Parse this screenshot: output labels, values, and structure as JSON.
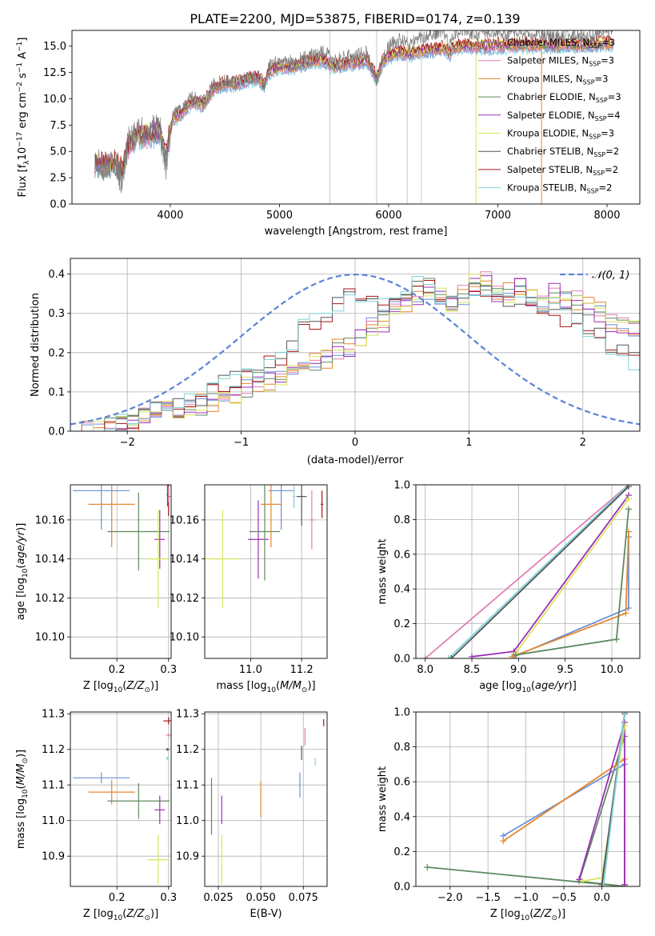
{
  "figure_title": "PLATE=2200, MJD=53875, FIBERID=0174, z=0.139",
  "colors": {
    "chabrier_miles": "#6a8fd8",
    "salpeter_miles": "#e27fb3",
    "kroupa_miles": "#e7862c",
    "chabrier_elodie": "#5e8a5e",
    "salpeter_elodie": "#9b2fb8",
    "kroupa_elodie": "#d8e55a",
    "chabrier_stelib": "#555555",
    "salpeter_stelib": "#a81515",
    "kroupa_stelib": "#7fd3d8",
    "data": "#7f7f7f",
    "normal": "#5b84d6",
    "grid": "#b0b0b0"
  },
  "chart_data": [
    {
      "id": "spectrum",
      "type": "line",
      "title": "PLATE=2200, MJD=53875, FIBERID=0174, z=0.139",
      "xlabel": "wavelength [Angstrom, rest frame]",
      "ylabel": "Flux [f_λ 10^-17 erg cm^-2 s^-1 A^-1]",
      "xlim": [
        3100,
        8300
      ],
      "ylim": [
        0,
        16.5
      ],
      "xticks": [
        4000,
        5000,
        6000,
        7000,
        8000
      ],
      "yticks": [
        0.0,
        2.5,
        5.0,
        7.5,
        10.0,
        12.5,
        15.0
      ],
      "grid": false,
      "legend_position": "top-right",
      "legend": [
        {
          "name": "Chabrier MILES, N_SSP=3",
          "base": "Chabrier MILES, N",
          "sub": "SSP",
          "tail": "=3",
          "color_key": "chabrier_miles"
        },
        {
          "name": "Salpeter MILES, N_SSP=3",
          "base": "Salpeter MILES, N",
          "sub": "SSP",
          "tail": "=3",
          "color_key": "salpeter_miles"
        },
        {
          "name": "Kroupa MILES, N_SSP=3",
          "base": "Kroupa MILES, N",
          "sub": "SSP",
          "tail": "=3",
          "color_key": "kroupa_miles"
        },
        {
          "name": "Chabrier ELODIE, N_SSP=3",
          "base": "Chabrier ELODIE, N",
          "sub": "SSP",
          "tail": "=3",
          "color_key": "chabrier_elodie"
        },
        {
          "name": "Salpeter ELODIE, N_SSP=4",
          "base": "Salpeter ELODIE, N",
          "sub": "SSP",
          "tail": "=4",
          "color_key": "salpeter_elodie"
        },
        {
          "name": "Kroupa ELODIE, N_SSP=3",
          "base": "Kroupa ELODIE, N",
          "sub": "SSP",
          "tail": "=3",
          "color_key": "kroupa_elodie"
        },
        {
          "name": "Chabrier STELIB, N_SSP=2",
          "base": "Chabrier STELIB, N",
          "sub": "SSP",
          "tail": "=2",
          "color_key": "chabrier_stelib"
        },
        {
          "name": "Salpeter STELIB, N_SSP=2",
          "base": "Salpeter STELIB, N",
          "sub": "SSP",
          "tail": "=2",
          "color_key": "salpeter_stelib"
        },
        {
          "name": "Kroupa STELIB, N_SSP=2",
          "base": "Kroupa STELIB, N",
          "sub": "SSP",
          "tail": "=2",
          "color_key": "kroupa_stelib"
        }
      ],
      "data_curve": {
        "x": [
          3310,
          3400,
          3500,
          3560,
          3620,
          3700,
          3800,
          3900,
          3960,
          4020,
          4100,
          4200,
          4300,
          4400,
          4500,
          4600,
          4700,
          4800,
          4860,
          4900,
          5000,
          5100,
          5200,
          5300,
          5400,
          5500,
          5600,
          5700,
          5800,
          5890,
          5950,
          6000,
          6100,
          6200,
          6300,
          6400,
          6500,
          6560,
          6600,
          6700,
          6800,
          6900,
          7000,
          7100,
          7200,
          7300,
          7400,
          7500,
          7600,
          7700,
          7800,
          7900,
          8000,
          8060
        ],
        "y": [
          3.9,
          3.7,
          3.9,
          2.0,
          6.0,
          7.0,
          6.8,
          7.2,
          3.8,
          8.5,
          9.0,
          10.2,
          9.8,
          11.3,
          11.8,
          11.6,
          12.0,
          12.3,
          11.0,
          13.0,
          13.6,
          13.5,
          13.8,
          14.2,
          14.5,
          13.7,
          13.9,
          14.1,
          14.4,
          11.5,
          14.0,
          15.0,
          15.6,
          15.2,
          15.8,
          16.2,
          16.5,
          15.0,
          16.3,
          16.5,
          16.2,
          16.4,
          16.3,
          16.1,
          16.4,
          16.0,
          16.2,
          15.9,
          16.0,
          16.2,
          15.8,
          16.1,
          16.4,
          16.5
        ]
      },
      "model_curve": {
        "x": [
          3310,
          3400,
          3500,
          3560,
          3620,
          3700,
          3800,
          3900,
          3960,
          4020,
          4100,
          4200,
          4300,
          4400,
          4500,
          4600,
          4700,
          4800,
          4860,
          4900,
          5000,
          5100,
          5200,
          5300,
          5400,
          5500,
          5600,
          5700,
          5800,
          5890,
          5950,
          6000,
          6100,
          6200,
          6300,
          6400,
          6500,
          6560,
          6600,
          6700,
          6800,
          6900,
          7000,
          7100,
          7200,
          7300,
          7400,
          7500,
          7600,
          7700,
          7800,
          7900,
          8000,
          8060
        ],
        "y": [
          3.8,
          3.6,
          3.8,
          3.0,
          5.5,
          6.5,
          6.4,
          6.9,
          4.5,
          8.0,
          8.6,
          9.7,
          9.4,
          10.9,
          11.4,
          11.4,
          11.7,
          12.0,
          11.2,
          12.5,
          13.0,
          13.0,
          13.2,
          13.5,
          13.6,
          13.0,
          13.2,
          13.4,
          13.6,
          12.0,
          13.5,
          14.0,
          14.4,
          14.2,
          14.5,
          14.6,
          14.8,
          14.3,
          14.8,
          15.0,
          14.9,
          14.9,
          15.0,
          15.0,
          15.1,
          15.0,
          15.1,
          15.0,
          15.1,
          15.1,
          15.0,
          15.1,
          15.2,
          15.2
        ]
      },
      "sky_lines_x": [
        5460,
        5890,
        6170,
        6300,
        6800,
        7400
      ]
    },
    {
      "id": "residuals",
      "type": "line",
      "xlabel": "(data-model)/error",
      "ylabel": "Normed distribution",
      "xlim": [
        -2.5,
        2.5
      ],
      "ylim": [
        0,
        0.44
      ],
      "xticks": [
        -2,
        -1,
        0,
        1,
        2
      ],
      "yticks": [
        0.0,
        0.1,
        0.2,
        0.3,
        0.4
      ],
      "grid": true,
      "legend_position": "top-right",
      "legend": [
        {
          "name": "N(0,1)",
          "label": "𝒩(0, 1)",
          "color_key": "normal"
        }
      ],
      "normal_mean": 0,
      "normal_sigma": 1,
      "hist_edges_start": -2.5,
      "hist_bin_width": 0.1,
      "hist_group_a": [
        0.0,
        0.0,
        0.005,
        0.01,
        0.02,
        0.03,
        0.04,
        0.05,
        0.06,
        0.07,
        0.08,
        0.09,
        0.1,
        0.12,
        0.13,
        0.14,
        0.15,
        0.17,
        0.19,
        0.22,
        0.26,
        0.28,
        0.3,
        0.33,
        0.36,
        0.35,
        0.33,
        0.32,
        0.34,
        0.36,
        0.38,
        0.36,
        0.35,
        0.33,
        0.34,
        0.36,
        0.35,
        0.33,
        0.32,
        0.34,
        0.33,
        0.31,
        0.3,
        0.29,
        0.28,
        0.26,
        0.24,
        0.22,
        0.2,
        0.18
      ],
      "hist_group_b": [
        0.0,
        0.0,
        0.0,
        0.005,
        0.01,
        0.02,
        0.03,
        0.04,
        0.05,
        0.05,
        0.06,
        0.07,
        0.08,
        0.09,
        0.1,
        0.11,
        0.12,
        0.13,
        0.14,
        0.15,
        0.16,
        0.17,
        0.19,
        0.21,
        0.22,
        0.24,
        0.26,
        0.28,
        0.3,
        0.33,
        0.35,
        0.36,
        0.34,
        0.33,
        0.35,
        0.37,
        0.38,
        0.36,
        0.35,
        0.36,
        0.34,
        0.33,
        0.35,
        0.34,
        0.33,
        0.32,
        0.3,
        0.28,
        0.27,
        0.26
      ]
    },
    {
      "id": "age_vs_Z",
      "type": "scatter",
      "xlabel": "Z [log10(Z/Z⊙)]",
      "ylabel": "age  [log10(age/yr)]",
      "xlim": [
        0.11,
        0.305
      ],
      "ylim": [
        10.089,
        10.178
      ],
      "xticks": [
        0.2,
        0.3
      ],
      "yticks": [
        10.1,
        10.12,
        10.14,
        10.16
      ],
      "grid": true,
      "points": [
        {
          "key": "chabrier_miles",
          "x": 0.17,
          "y": 10.175,
          "xerr": 0.055,
          "yerr": 0.02
        },
        {
          "key": "kroupa_miles",
          "x": 0.19,
          "y": 10.168,
          "xerr": 0.045,
          "yerr": 0.022
        },
        {
          "key": "chabrier_elodie",
          "x": 0.242,
          "y": 10.154,
          "xerr": 0.06,
          "yerr": 0.02
        },
        {
          "key": "salpeter_elodie",
          "x": 0.283,
          "y": 10.15,
          "xerr": 0.01,
          "yerr": 0.015
        },
        {
          "key": "kroupa_elodie",
          "x": 0.28,
          "y": 10.14,
          "xerr": 0.02,
          "yerr": 0.025
        },
        {
          "key": "salpeter_stelib",
          "x": 0.3,
          "y": 10.172,
          "xerr": 0.003,
          "yerr": 0.01
        },
        {
          "key": "chabrier_stelib",
          "x": 0.298,
          "y": 10.173,
          "xerr": 0.002,
          "yerr": 0.006
        },
        {
          "key": "salpeter_miles",
          "x": 0.3,
          "y": 10.173,
          "xerr": 0.001,
          "yerr": 0.004
        }
      ]
    },
    {
      "id": "age_vs_mass",
      "type": "scatter",
      "xlabel": "mass [log10(M/M⊙)]",
      "ylabel": "",
      "xlim": [
        10.82,
        11.3
      ],
      "ylim": [
        10.089,
        10.178
      ],
      "xticks": [
        11.0,
        11.2
      ],
      "yticks": [
        10.1,
        10.12,
        10.14,
        10.16
      ],
      "grid": true,
      "points": [
        {
          "key": "kroupa_elodie",
          "x": 10.89,
          "y": 10.14,
          "xerr": 0.07,
          "yerr": 0.025
        },
        {
          "key": "salpeter_elodie",
          "x": 11.03,
          "y": 10.15,
          "xerr": 0.04,
          "yerr": 0.02
        },
        {
          "key": "chabrier_elodie",
          "x": 11.055,
          "y": 10.154,
          "xerr": 0.06,
          "yerr": 0.025
        },
        {
          "key": "kroupa_miles",
          "x": 11.08,
          "y": 10.168,
          "xerr": 0.04,
          "yerr": 0.022
        },
        {
          "key": "chabrier_miles",
          "x": 11.12,
          "y": 10.175,
          "xerr": 0.05,
          "yerr": 0.02
        },
        {
          "key": "kroupa_stelib",
          "x": 11.17,
          "y": 10.172,
          "xerr": 0.005,
          "yerr": 0.006
        },
        {
          "key": "chabrier_stelib",
          "x": 11.2,
          "y": 10.172,
          "xerr": 0.02,
          "yerr": 0.015
        },
        {
          "key": "salpeter_miles",
          "x": 11.24,
          "y": 10.16,
          "xerr": 0.01,
          "yerr": 0.015
        },
        {
          "key": "salpeter_stelib",
          "x": 11.28,
          "y": 10.168,
          "xerr": 0.005,
          "yerr": 0.007
        }
      ]
    },
    {
      "id": "massweight_vs_age",
      "type": "line",
      "xlabel": "age  [log10(age/yr)]",
      "ylabel": "mass weight",
      "xlim": [
        7.9,
        10.3
      ],
      "ylim": [
        0,
        1.0
      ],
      "xticks": [
        8.0,
        8.5,
        9.0,
        9.5,
        10.0
      ],
      "yticks": [
        0.0,
        0.2,
        0.4,
        0.6,
        0.8,
        1.0
      ],
      "grid": true,
      "series": [
        {
          "key": "salpeter_miles",
          "x": [
            8.0,
            10.18
          ],
          "y": [
            0.0,
            1.0
          ]
        },
        {
          "key": "kroupa_stelib",
          "x": [
            8.25,
            10.18
          ],
          "y": [
            0.0,
            1.0
          ]
        },
        {
          "key": "chabrier_stelib",
          "x": [
            8.28,
            10.18
          ],
          "y": [
            0.0,
            0.99
          ]
        },
        {
          "key": "chabrier_miles",
          "x": [
            8.95,
            10.18,
            10.18
          ],
          "y": [
            0.01,
            0.29,
            0.7
          ]
        },
        {
          "key": "kroupa_miles",
          "x": [
            8.93,
            10.15,
            10.18
          ],
          "y": [
            0.01,
            0.26,
            0.73
          ]
        },
        {
          "key": "salpeter_elodie",
          "x": [
            8.5,
            8.95,
            10.18
          ],
          "y": [
            0.01,
            0.04,
            0.94
          ]
        },
        {
          "key": "kroupa_elodie",
          "x": [
            8.97,
            10.18
          ],
          "y": [
            0.03,
            0.92
          ]
        },
        {
          "key": "chabrier_elodie",
          "x": [
            8.97,
            10.05,
            10.18
          ],
          "y": [
            0.02,
            0.11,
            0.86
          ]
        }
      ]
    },
    {
      "id": "mass_vs_Z",
      "type": "scatter",
      "xlabel": "Z [log10(Z/Z⊙)]",
      "ylabel": "mass [log10(M/M⊙)]",
      "xlim": [
        0.11,
        0.305
      ],
      "ylim": [
        10.815,
        11.305
      ],
      "xticks": [
        0.2,
        0.3
      ],
      "yticks": [
        10.9,
        11.0,
        11.1,
        11.2,
        11.3
      ],
      "grid": true,
      "points": [
        {
          "key": "chabrier_miles",
          "x": 0.17,
          "y": 11.12,
          "xerr": 0.055,
          "yerr": 0.015
        },
        {
          "key": "kroupa_miles",
          "x": 0.19,
          "y": 11.08,
          "xerr": 0.045,
          "yerr": 0.035
        },
        {
          "key": "chabrier_elodie",
          "x": 0.242,
          "y": 11.055,
          "xerr": 0.06,
          "yerr": 0.05
        },
        {
          "key": "salpeter_elodie",
          "x": 0.283,
          "y": 11.03,
          "xerr": 0.01,
          "yerr": 0.04
        },
        {
          "key": "kroupa_elodie",
          "x": 0.28,
          "y": 10.89,
          "xerr": 0.02,
          "yerr": 0.07
        },
        {
          "key": "salpeter_stelib",
          "x": 0.3,
          "y": 11.28,
          "xerr": 0.01,
          "yerr": 0.01
        },
        {
          "key": "salpeter_miles",
          "x": 0.3,
          "y": 11.24,
          "xerr": 0.005,
          "yerr": 0.005
        },
        {
          "key": "chabrier_stelib",
          "x": 0.298,
          "y": 11.2,
          "xerr": 0.004,
          "yerr": 0.004
        },
        {
          "key": "kroupa_stelib",
          "x": 0.298,
          "y": 11.175,
          "xerr": 0.003,
          "yerr": 0.004
        }
      ]
    },
    {
      "id": "mass_vs_ebv",
      "type": "scatter",
      "xlabel": "E(B-V)",
      "ylabel": "",
      "xlim": [
        0.017,
        0.089
      ],
      "ylim": [
        10.815,
        11.305
      ],
      "xticks": [
        0.025,
        0.05,
        0.075
      ],
      "yticks": [
        10.9,
        11.0,
        11.1,
        11.2,
        11.3
      ],
      "grid": true,
      "points": [
        {
          "key": "chabrier_elodie",
          "x": 0.021,
          "y": 11.04,
          "xerr": 0.0,
          "yerr": 0.08
        },
        {
          "key": "kroupa_elodie",
          "x": 0.027,
          "y": 10.89,
          "xerr": 0.0,
          "yerr": 0.07
        },
        {
          "key": "salpeter_elodie",
          "x": 0.027,
          "y": 11.03,
          "xerr": 0.0,
          "yerr": 0.04
        },
        {
          "key": "kroupa_miles",
          "x": 0.05,
          "y": 11.06,
          "xerr": 0.0,
          "yerr": 0.05
        },
        {
          "key": "chabrier_miles",
          "x": 0.073,
          "y": 11.1,
          "xerr": 0.0,
          "yerr": 0.035
        },
        {
          "key": "chabrier_stelib",
          "x": 0.074,
          "y": 11.19,
          "xerr": 0.0,
          "yerr": 0.02
        },
        {
          "key": "salpeter_miles",
          "x": 0.076,
          "y": 11.235,
          "xerr": 0.0,
          "yerr": 0.025
        },
        {
          "key": "kroupa_stelib",
          "x": 0.082,
          "y": 11.165,
          "xerr": 0.0,
          "yerr": 0.01
        },
        {
          "key": "salpeter_stelib",
          "x": 0.087,
          "y": 11.275,
          "xerr": 0.0,
          "yerr": 0.01
        }
      ]
    },
    {
      "id": "massweight_vs_Z",
      "type": "line",
      "xlabel": "Z [log10(Z/Z⊙)]",
      "ylabel": "mass weight",
      "xlim": [
        -2.45,
        0.5
      ],
      "ylim": [
        0,
        1.0
      ],
      "xticks": [
        -2.0,
        -1.5,
        -1.0,
        -0.5,
        0.0
      ],
      "yticks": [
        0.0,
        0.2,
        0.4,
        0.6,
        0.8,
        1.0
      ],
      "grid": true,
      "series": [
        {
          "key": "chabrier_elodie",
          "x": [
            -2.3,
            0.3,
            -0.3,
            0.3
          ],
          "y": [
            0.11,
            0.0,
            0.03,
            0.86
          ]
        },
        {
          "key": "chabrier_miles",
          "x": [
            -1.3,
            0.3,
            0.3
          ],
          "y": [
            0.29,
            0.7,
            0.0
          ]
        },
        {
          "key": "kroupa_miles",
          "x": [
            -1.3,
            0.3,
            0.3
          ],
          "y": [
            0.26,
            0.73,
            0.0
          ]
        },
        {
          "key": "salpeter_elodie",
          "x": [
            -0.3,
            0.3,
            0.3,
            0.3
          ],
          "y": [
            0.04,
            0.94,
            0.01,
            0.01
          ]
        },
        {
          "key": "kroupa_elodie",
          "x": [
            -0.25,
            0.0,
            0.3
          ],
          "y": [
            0.03,
            0.05,
            0.92
          ]
        },
        {
          "key": "salpeter_miles",
          "x": [
            0.0,
            0.3
          ],
          "y": [
            0.0,
            1.0
          ]
        },
        {
          "key": "chabrier_stelib",
          "x": [
            0.0,
            0.3
          ],
          "y": [
            0.01,
            0.99
          ]
        },
        {
          "key": "kroupa_stelib",
          "x": [
            0.02,
            0.3
          ],
          "y": [
            0.0,
            1.0
          ]
        }
      ]
    }
  ]
}
